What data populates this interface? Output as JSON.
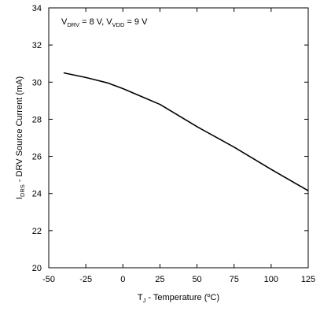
{
  "chart_data": {
    "type": "line",
    "title": "",
    "xlabel": {
      "main": "T",
      "sub": "J",
      "rest": " - Temperature (",
      "sup": "o",
      "end": "C)"
    },
    "ylabel": {
      "main": "I",
      "sub": "DRS",
      "rest": " - DRV Source Current (mA)"
    },
    "annotation": {
      "v1": "V",
      "v1_sub": "DRV",
      "v1_val": " = 8 V, V",
      "v2_sub": "VDD",
      "v2_val": " = 9 V"
    },
    "xlim": [
      -50,
      125
    ],
    "ylim": [
      20,
      34
    ],
    "xticks": [
      -50,
      -25,
      0,
      25,
      50,
      75,
      100,
      125
    ],
    "xtick_labels": [
      "-50",
      "-25",
      "0",
      "25",
      "50",
      "75",
      "100",
      "125"
    ],
    "yticks": [
      20,
      22,
      24,
      26,
      28,
      30,
      32,
      34
    ],
    "ytick_labels": [
      "20",
      "22",
      "24",
      "26",
      "28",
      "30",
      "32",
      "34"
    ],
    "grid": false,
    "series": [
      {
        "x": [
          -40,
          -25,
          -10,
          0,
          25,
          50,
          75,
          100,
          125
        ],
        "y": [
          30.5,
          30.25,
          29.95,
          29.65,
          28.8,
          27.6,
          26.5,
          25.3,
          24.15
        ]
      }
    ],
    "colors": {
      "line": "#000000",
      "frame": "#000000",
      "background": "#ffffff"
    }
  }
}
